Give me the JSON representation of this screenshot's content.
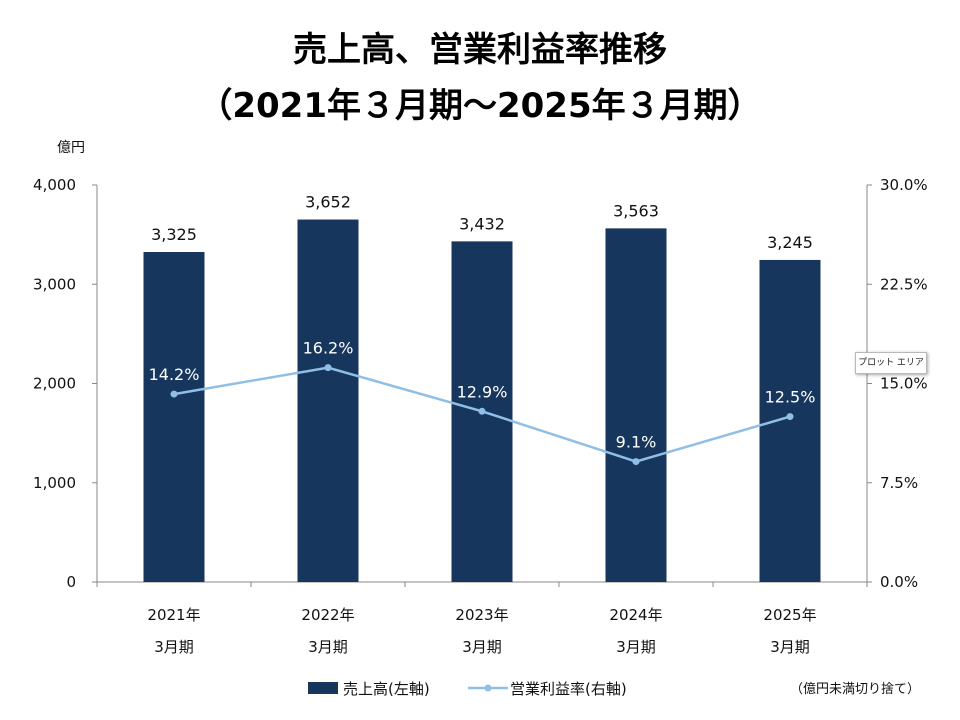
{
  "title_line1": "売上高、営業利益率推移",
  "title_line2": "（2021年３月期～2025年３月期）",
  "left_unit": "億円",
  "left_ticks": [
    "0",
    "1,000",
    "2,000",
    "3,000",
    "4,000"
  ],
  "right_ticks": [
    "0.0%",
    "7.5%",
    "15.0%",
    "22.5%",
    "30.0%"
  ],
  "categories_line1": [
    "2021年",
    "2022年",
    "2023年",
    "2024年",
    "2025年"
  ],
  "categories_line2": [
    "3月期",
    "3月期",
    "3月期",
    "3月期",
    "3月期"
  ],
  "bar_labels": [
    "3,325",
    "3,652",
    "3,432",
    "3,563",
    "3,245"
  ],
  "line_labels": [
    "14.2%",
    "16.2%",
    "12.9%",
    "9.1%",
    "12.5%"
  ],
  "legend": {
    "bar": "売上高(左軸)",
    "line": "営業利益率(右軸)"
  },
  "note": "（億円未満切り捨て）",
  "tooltip": "プロット エリア",
  "colors": {
    "bar": "#17365d",
    "line": "#8fbfe6",
    "axis": "#888888"
  },
  "chart_data": {
    "type": "bar",
    "categories": [
      "2021年3月期",
      "2022年3月期",
      "2023年3月期",
      "2024年3月期",
      "2025年3月期"
    ],
    "series": [
      {
        "name": "売上高(左軸)",
        "type": "bar",
        "axis": "left",
        "values": [
          3325,
          3652,
          3432,
          3563,
          3245
        ]
      },
      {
        "name": "営業利益率(右軸)",
        "type": "line",
        "axis": "right",
        "values": [
          14.2,
          16.2,
          12.9,
          9.1,
          12.5
        ]
      }
    ],
    "ylim_left": [
      0,
      4000
    ],
    "ylim_right": [
      0,
      30
    ],
    "ylabel": "億円",
    "grid": false,
    "legend_position": "bottom"
  }
}
